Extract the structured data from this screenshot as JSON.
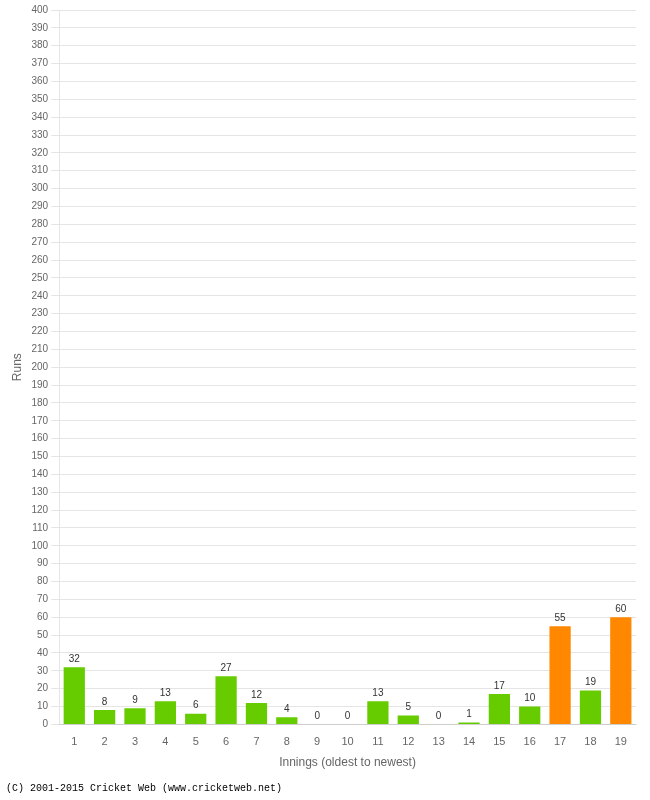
{
  "chart_data": {
    "type": "bar",
    "xlabel": "Innings (oldest to newest)",
    "ylabel": "Runs",
    "categories": [
      "1",
      "2",
      "3",
      "4",
      "5",
      "6",
      "7",
      "8",
      "9",
      "10",
      "11",
      "12",
      "13",
      "14",
      "15",
      "16",
      "17",
      "18",
      "19"
    ],
    "values": [
      32,
      8,
      9,
      13,
      6,
      27,
      12,
      4,
      0,
      0,
      13,
      5,
      0,
      1,
      17,
      10,
      55,
      19,
      60
    ],
    "colors": [
      "#66cc00",
      "#66cc00",
      "#66cc00",
      "#66cc00",
      "#66cc00",
      "#66cc00",
      "#66cc00",
      "#66cc00",
      "#66cc00",
      "#66cc00",
      "#66cc00",
      "#66cc00",
      "#66cc00",
      "#66cc00",
      "#66cc00",
      "#66cc00",
      "#ff8800",
      "#66cc00",
      "#ff8800"
    ],
    "ylim": [
      0,
      400
    ],
    "yticks": [
      0,
      10,
      20,
      30,
      40,
      50,
      60,
      70,
      80,
      90,
      100,
      110,
      120,
      130,
      140,
      150,
      160,
      170,
      180,
      190,
      200,
      210,
      220,
      230,
      240,
      250,
      260,
      270,
      280,
      290,
      300,
      310,
      320,
      330,
      340,
      350,
      360,
      370,
      380,
      390,
      400
    ],
    "grid": true,
    "data_labels": true,
    "annotations": [
      "(C) 2001-2015 Cricket Web (www.cricketweb.net)"
    ]
  }
}
